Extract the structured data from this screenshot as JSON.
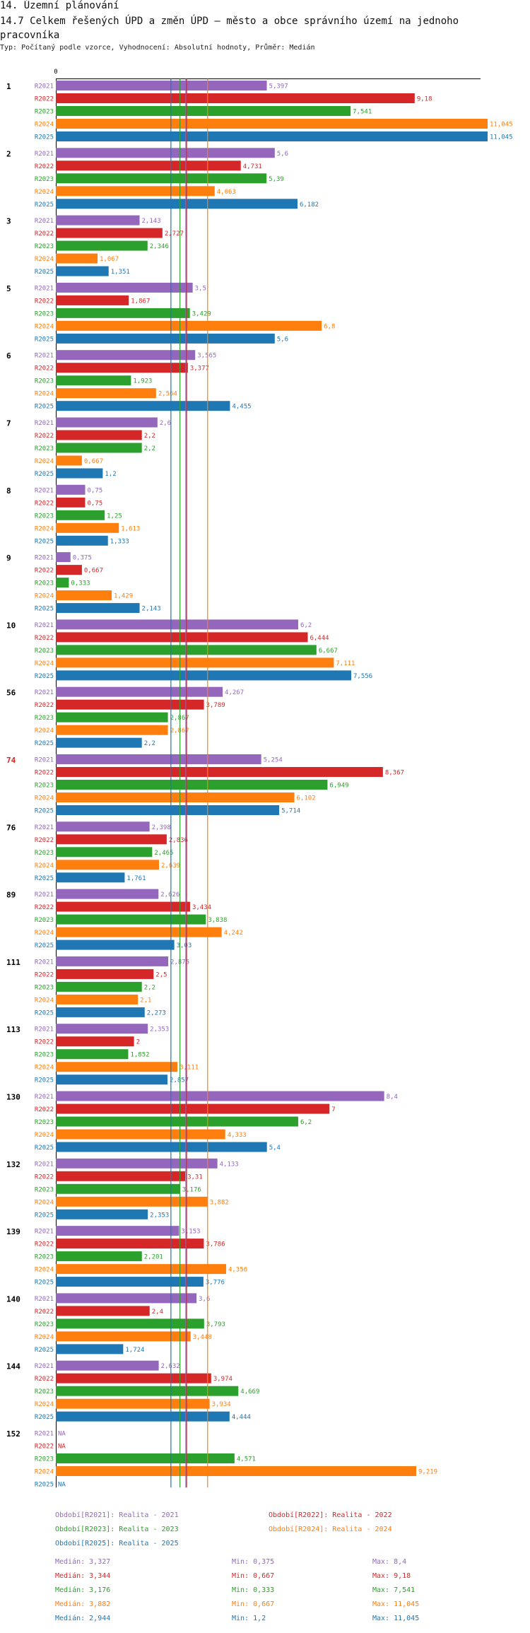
{
  "header": {
    "section": "14. Územní plánování",
    "title": "14.7 Celkem řešených ÚPD a změn ÚPD – město a obce správního území  na jednoho pracovníka",
    "subtitle": "Typ: Počítaný podle vzorce, Vyhodnocení: Absolutní hodnoty, Průměr: Medián"
  },
  "colors": {
    "R2021": "#9467bd",
    "R2022": "#d62728",
    "R2023": "#2ca02c",
    "R2024": "#ff7f0e",
    "R2025": "#1f77b4"
  },
  "chart_data": {
    "type": "bar",
    "orientation": "horizontal",
    "axis_zero_label": "0",
    "xlim": [
      0,
      11.045
    ],
    "series_names": [
      "R2021",
      "R2022",
      "R2023",
      "R2024",
      "R2025"
    ],
    "na_label": "NA",
    "highlight_group": "74",
    "groups": [
      {
        "label": "1",
        "values": [
          5.397,
          9.18,
          7.541,
          11.045,
          11.045
        ],
        "labels": [
          "5,397",
          "9,18",
          "7,541",
          "11,045",
          "11,045"
        ]
      },
      {
        "label": "2",
        "values": [
          5.6,
          4.731,
          5.39,
          4.063,
          6.182
        ],
        "labels": [
          "5,6",
          "4,731",
          "5,39",
          "4,063",
          "6,182"
        ]
      },
      {
        "label": "3",
        "values": [
          2.143,
          2.727,
          2.346,
          1.067,
          1.351
        ],
        "labels": [
          "2,143",
          "2,727",
          "2,346",
          "1,067",
          "1,351"
        ]
      },
      {
        "label": "5",
        "values": [
          3.5,
          1.867,
          3.429,
          6.8,
          5.6
        ],
        "labels": [
          "3,5",
          "1,867",
          "3,429",
          "6,8",
          "5,6"
        ]
      },
      {
        "label": "6",
        "values": [
          3.565,
          3.377,
          1.923,
          2.564,
          4.455
        ],
        "labels": [
          "3,565",
          "3,377",
          "1,923",
          "2,564",
          "4,455"
        ]
      },
      {
        "label": "7",
        "values": [
          2.6,
          2.2,
          2.2,
          0.667,
          1.2
        ],
        "labels": [
          "2,6",
          "2,2",
          "2,2",
          "0,667",
          "1,2"
        ]
      },
      {
        "label": "8",
        "values": [
          0.75,
          0.75,
          1.25,
          1.613,
          1.333
        ],
        "labels": [
          "0,75",
          "0,75",
          "1,25",
          "1,613",
          "1,333"
        ]
      },
      {
        "label": "9",
        "values": [
          0.375,
          0.667,
          0.333,
          1.429,
          2.143
        ],
        "labels": [
          "0,375",
          "0,667",
          "0,333",
          "1,429",
          "2,143"
        ]
      },
      {
        "label": "10",
        "values": [
          6.2,
          6.444,
          6.667,
          7.111,
          7.556
        ],
        "labels": [
          "6,2",
          "6,444",
          "6,667",
          "7,111",
          "7,556"
        ]
      },
      {
        "label": "56",
        "values": [
          4.267,
          3.789,
          2.867,
          2.867,
          2.2
        ],
        "labels": [
          "4,267",
          "3,789",
          "2,867",
          "2,867",
          "2,2"
        ]
      },
      {
        "label": "74",
        "values": [
          5.254,
          8.367,
          6.949,
          6.102,
          5.714
        ],
        "labels": [
          "5,254",
          "8,367",
          "6,949",
          "6,102",
          "5,714"
        ]
      },
      {
        "label": "76",
        "values": [
          2.398,
          2.836,
          2.465,
          2.639,
          1.761
        ],
        "labels": [
          "2,398",
          "2,836",
          "2,465",
          "2,639",
          "1,761"
        ]
      },
      {
        "label": "89",
        "values": [
          2.626,
          3.434,
          3.838,
          4.242,
          3.03
        ],
        "labels": [
          "2,626",
          "3,434",
          "3,838",
          "4,242",
          "3,03"
        ]
      },
      {
        "label": "111",
        "values": [
          2.875,
          2.5,
          2.2,
          2.1,
          2.273
        ],
        "labels": [
          "2,875",
          "2,5",
          "2,2",
          "2,1",
          "2,273"
        ]
      },
      {
        "label": "113",
        "values": [
          2.353,
          2,
          1.852,
          3.111,
          2.857
        ],
        "labels": [
          "2,353",
          "2",
          "1,852",
          "3,111",
          "2,857"
        ]
      },
      {
        "label": "130",
        "values": [
          8.4,
          7,
          6.2,
          4.333,
          5.4
        ],
        "labels": [
          "8,4",
          "7",
          "6,2",
          "4,333",
          "5,4"
        ]
      },
      {
        "label": "132",
        "values": [
          4.133,
          3.31,
          3.176,
          3.882,
          2.353
        ],
        "labels": [
          "4,133",
          "3,31",
          "3,176",
          "3,882",
          "2,353"
        ]
      },
      {
        "label": "139",
        "values": [
          3.153,
          3.786,
          2.201,
          4.356,
          3.776
        ],
        "labels": [
          "3,153",
          "3,786",
          "2,201",
          "4,356",
          "3,776"
        ]
      },
      {
        "label": "140",
        "values": [
          3.6,
          2.4,
          3.793,
          3.448,
          1.724
        ],
        "labels": [
          "3,6",
          "2,4",
          "3,793",
          "3,448",
          "1,724"
        ]
      },
      {
        "label": "144",
        "values": [
          2.632,
          3.974,
          4.669,
          3.934,
          4.444
        ],
        "labels": [
          "2,632",
          "3,974",
          "4,669",
          "3,934",
          "4,444"
        ]
      },
      {
        "label": "152",
        "values": [
          null,
          null,
          4.571,
          9.219,
          null
        ],
        "labels": [
          "NA",
          "NA",
          "4,571",
          "9,219",
          "NA"
        ]
      }
    ],
    "reference_lines": [
      {
        "series": "R2021",
        "stat": "median",
        "value": 3.327
      },
      {
        "series": "R2022",
        "stat": "median",
        "value": 3.344
      },
      {
        "series": "R2023",
        "stat": "median",
        "value": 3.176
      },
      {
        "series": "R2024",
        "stat": "median",
        "value": 3.882
      },
      {
        "series": "R2025",
        "stat": "median",
        "value": 2.944
      }
    ]
  },
  "legend": {
    "series": [
      {
        "key": "R2021",
        "text": "Období[R2021]: Realita - 2021"
      },
      {
        "key": "R2022",
        "text": "Období[R2022]: Realita - 2022"
      },
      {
        "key": "R2023",
        "text": "Období[R2023]: Realita - 2023"
      },
      {
        "key": "R2024",
        "text": "Období[R2024]: Realita - 2024"
      },
      {
        "key": "R2025",
        "text": "Období[R2025]: Realita - 2025"
      }
    ],
    "stats": [
      {
        "key": "R2021",
        "median": "Medián: 3,327",
        "min": "Min: 0,375",
        "max": "Max: 8,4"
      },
      {
        "key": "R2022",
        "median": "Medián: 3,344",
        "min": "Min: 0,667",
        "max": "Max: 9,18"
      },
      {
        "key": "R2023",
        "median": "Medián: 3,176",
        "min": "Min: 0,333",
        "max": "Max: 7,541"
      },
      {
        "key": "R2024",
        "median": "Medián: 3,882",
        "min": "Min: 0,667",
        "max": "Max: 11,045"
      },
      {
        "key": "R2025",
        "median": "Medián: 2,944",
        "min": "Min: 1,2",
        "max": "Max: 11,045"
      }
    ]
  }
}
